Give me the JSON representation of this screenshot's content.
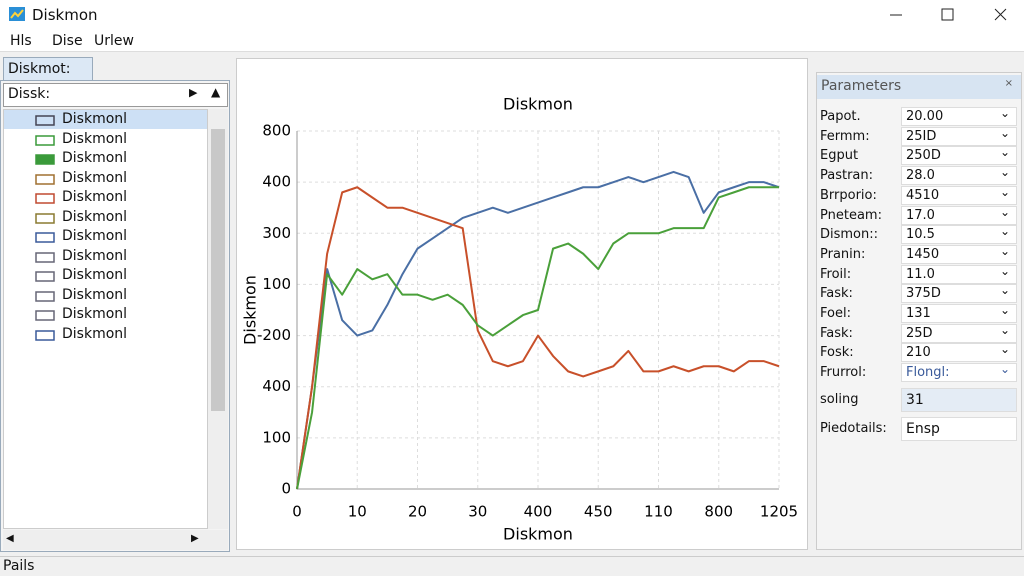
{
  "window": {
    "title": "Diskmon",
    "menu": [
      "Hls",
      "Dise",
      "Urlew"
    ]
  },
  "left_panel": {
    "tab": "Diskmot:",
    "combo": "Dissk:",
    "tree": [
      "Diskmonl",
      "Diskmonl",
      "Diskmonl",
      "Diskmonl",
      "Diskmonl",
      "Diskmonl",
      "Diskmonl",
      "Diskmonl",
      "Diskmonl",
      "Diskmonl",
      "Diskmonl",
      "Diskmonl"
    ]
  },
  "chart_data": {
    "type": "line",
    "title": "Diskmon",
    "xlabel": "Diskmon",
    "ylabel": "Diskmon",
    "x": [
      0,
      0.25,
      0.5,
      0.75,
      1,
      1.25,
      1.5,
      1.75,
      2,
      2.25,
      2.5,
      2.75,
      3,
      3.25,
      3.5,
      3.75,
      4,
      4.25,
      4.5,
      4.75,
      5,
      5.25,
      5.5,
      5.75,
      6,
      6.25,
      6.5,
      6.75,
      7,
      7.25,
      7.5,
      7.75,
      8
    ],
    "series": [
      {
        "color": "#4a6fa5",
        "values": [
          0,
          2.0,
          4.3,
          3.3,
          3.0,
          3.1,
          3.6,
          4.2,
          4.7,
          4.9,
          5.1,
          5.3,
          5.4,
          5.5,
          5.4,
          5.5,
          5.6,
          5.7,
          5.8,
          5.9,
          5.9,
          6.0,
          6.1,
          6.0,
          6.1,
          6.2,
          6.1,
          5.4,
          5.8,
          5.9,
          6.0,
          6.0,
          5.9
        ]
      },
      {
        "color": "#c8502a",
        "values": [
          0,
          2.0,
          4.6,
          5.8,
          5.9,
          5.7,
          5.5,
          5.5,
          5.4,
          5.3,
          5.2,
          5.1,
          3.1,
          2.5,
          2.4,
          2.5,
          3.0,
          2.6,
          2.3,
          2.2,
          2.3,
          2.4,
          2.7,
          2.3,
          2.3,
          2.4,
          2.3,
          2.4,
          2.4,
          2.3,
          2.5,
          2.5,
          2.4
        ]
      },
      {
        "color": "#4aa03a",
        "values": [
          0,
          1.5,
          4.2,
          3.8,
          4.3,
          4.1,
          4.2,
          3.8,
          3.8,
          3.7,
          3.8,
          3.6,
          3.2,
          3.0,
          3.2,
          3.4,
          3.5,
          4.7,
          4.8,
          4.6,
          4.3,
          4.8,
          5.0,
          5.0,
          5.0,
          5.1,
          5.1,
          5.1,
          5.7,
          5.8,
          5.9,
          5.9,
          5.9
        ]
      }
    ],
    "xlim": [
      0,
      8
    ],
    "ylim": [
      0,
      7
    ],
    "xticks": [
      0,
      {
        "value": 1,
        "label": "10"
      },
      {
        "value": 2,
        "label": "20"
      },
      {
        "value": 3,
        "label": "30"
      },
      {
        "value": 4,
        "label": "400"
      },
      {
        "value": 5,
        "label": "450"
      },
      {
        "value": 6,
        "label": "110"
      },
      {
        "value": 7,
        "label": "800"
      },
      {
        "value": 8,
        "label": "1205"
      }
    ],
    "yticks": [
      0,
      {
        "value": 1,
        "label": "100"
      },
      {
        "value": 2,
        "label": "400"
      },
      {
        "value": 3,
        "label": "-200"
      },
      {
        "value": 4,
        "label": "100"
      },
      {
        "value": 5,
        "label": "300"
      },
      {
        "value": 6,
        "label": "400"
      },
      {
        "value": 7,
        "label": "800"
      }
    ],
    "grid": true
  },
  "parameters": {
    "title": "Parameters",
    "rows": [
      [
        "Papot.",
        "20.00"
      ],
      [
        "Fermm:",
        "25ID"
      ],
      [
        "Egput",
        "250D"
      ],
      [
        "Pastran:",
        "28.0"
      ],
      [
        "Brrporio:",
        "4510"
      ],
      [
        "Pneteam:",
        "17.0"
      ],
      [
        "Dismon::",
        "10.5"
      ],
      [
        "Pranin:",
        "1450"
      ],
      [
        "Froil:",
        "11.0"
      ],
      [
        "Fask:",
        "375D"
      ],
      [
        "Foel:",
        "131"
      ],
      [
        "Fask:",
        "25D"
      ],
      [
        "Fosk:",
        "210"
      ],
      [
        "Frurrol:",
        "Flongl:"
      ]
    ],
    "extra": [
      [
        "soling",
        "31"
      ],
      [
        "Piedotails:",
        "Ensp"
      ]
    ]
  },
  "status": "Pails"
}
